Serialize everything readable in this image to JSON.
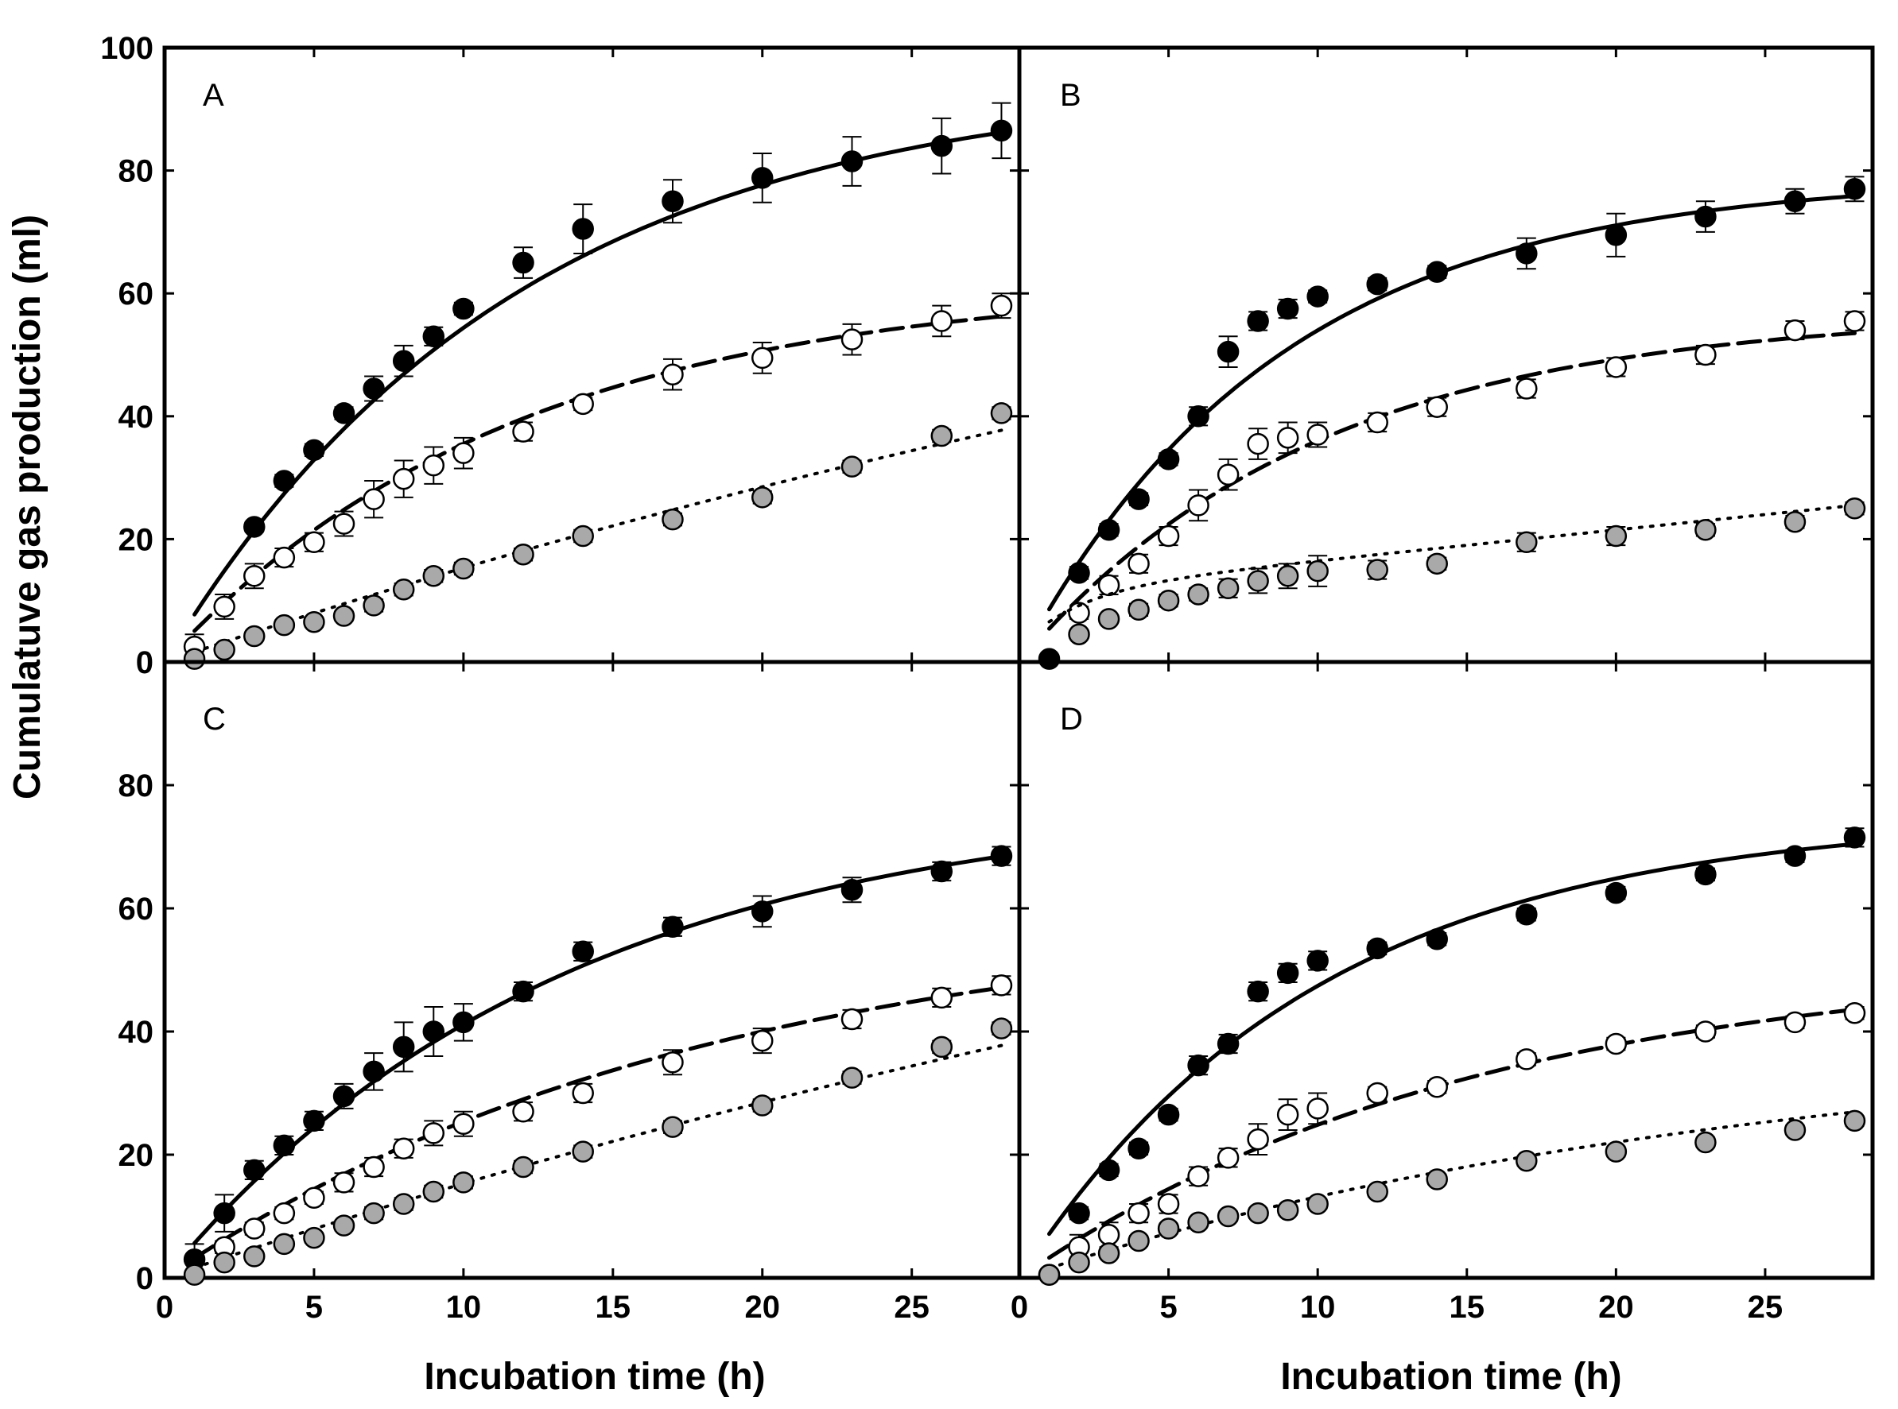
{
  "chart_data": {
    "type": "scatter",
    "ylabel": "Cumulatuve gas production (ml)",
    "xlabel": "Incubation time (h)",
    "xlim": [
      0,
      28.6
    ],
    "ylim": [
      0,
      100
    ],
    "x_ticks": [
      0,
      5,
      10,
      15,
      20,
      25
    ],
    "y_ticks": [
      0,
      20,
      40,
      60,
      80,
      100
    ],
    "series_styles": [
      {
        "key": "filled",
        "marker_fill": "#000000",
        "line": "solid"
      },
      {
        "key": "open",
        "marker_fill": "#ffffff",
        "line": "dashed"
      },
      {
        "key": "grey",
        "marker_fill": "#a9a9a9",
        "line": "dotted"
      }
    ],
    "panels": [
      {
        "label": "A",
        "series": [
          {
            "style": "filled",
            "fit": {
              "a": 0,
              "b": 95,
              "c": 0.085
            },
            "x": [
              3,
              4,
              5,
              6,
              7,
              8,
              9,
              10,
              12,
              14,
              17,
              20,
              23,
              26,
              28
            ],
            "y": [
              22,
              29.5,
              34.5,
              40.5,
              44.5,
              49,
              53,
              57.5,
              65,
              70.5,
              75,
              78.8,
              81.5,
              84,
              86.5
            ],
            "err": [
              0.8,
              1,
              1,
              1,
              2,
              2.5,
              1.5,
              1,
              2.5,
              4,
              3.5,
              4,
              4,
              4.5,
              4.5
            ]
          },
          {
            "style": "open",
            "fit": {
              "a": 0,
              "b": 62,
              "c": 0.085
            },
            "x": [
              1,
              2,
              3,
              4,
              5,
              6,
              7,
              8,
              9,
              10,
              12,
              14,
              17,
              20,
              23,
              26,
              28
            ],
            "y": [
              2.5,
              9,
              14,
              17,
              19.5,
              22.5,
              26.5,
              29.8,
              32,
              34,
              37.5,
              42,
              46.8,
              49.5,
              52.5,
              55.5,
              58
            ],
            "err": [
              2,
              2,
              2,
              1.5,
              1.5,
              2,
              3,
              3,
              3,
              2.5,
              1.5,
              1,
              2.5,
              2.5,
              2.5,
              2.5,
              2
            ]
          },
          {
            "style": "grey",
            "fit": {
              "a": 0,
              "b": 110,
              "c": 0.015
            },
            "x": [
              1,
              2,
              3,
              4,
              5,
              6,
              7,
              8,
              9,
              10,
              12,
              14,
              17,
              20,
              23,
              26,
              28
            ],
            "y": [
              0.5,
              2,
              4.2,
              6,
              6.5,
              7.5,
              9.2,
              11.8,
              14,
              15.2,
              17.5,
              20.5,
              23.2,
              26.8,
              31.8,
              36.8,
              40.5
            ],
            "err": [
              0.5,
              0.5,
              0.7,
              0.8,
              0.8,
              0.8,
              1,
              1,
              1,
              1,
              1,
              1,
              1,
              1,
              1,
              1,
              1
            ]
          }
        ]
      },
      {
        "label": "B",
        "series": [
          {
            "style": "filled",
            "fit": {
              "a": 0,
              "b": 79,
              "c": 0.115
            },
            "x": [
              1,
              2,
              3,
              4,
              5,
              6,
              7,
              8,
              9,
              10,
              12,
              14,
              17,
              20,
              23,
              26,
              28
            ],
            "y": [
              0.5,
              14.5,
              21.5,
              26.5,
              33,
              40,
              50.5,
              55.5,
              57.5,
              59.5,
              61.5,
              63.5,
              66.5,
              69.5,
              72.5,
              75,
              77
            ],
            "err": [
              0.5,
              1,
              1,
              1,
              1,
              1.5,
              2.5,
              1.5,
              1.5,
              1,
              1,
              1,
              2.5,
              3.5,
              2.5,
              2,
              2
            ]
          },
          {
            "style": "open",
            "fit": {
              "a": 0,
              "b": 57,
              "c": 0.1
            },
            "x": [
              2,
              3,
              4,
              5,
              6,
              7,
              8,
              9,
              10,
              12,
              14,
              17,
              20,
              23,
              26,
              28
            ],
            "y": [
              8,
              12.5,
              16,
              20.5,
              25.5,
              30.5,
              35.5,
              36.5,
              37,
              39,
              41.5,
              44.5,
              48,
              50,
              54,
              55.5
            ],
            "err": [
              1,
              1.5,
              1.5,
              1.5,
              2.5,
              2.5,
              2.5,
              2.5,
              2,
              1.5,
              1.5,
              1.5,
              1.5,
              1.5,
              1.5,
              1.5
            ]
          },
          {
            "style": "grey",
            "fit": {
              "a": 2.5,
              "b": 9,
              "c": 0.5,
              "d": 0.5
            },
            "x": [
              2,
              3,
              4,
              5,
              6,
              7,
              8,
              9,
              10,
              12,
              14,
              17,
              20,
              23,
              26,
              28
            ],
            "y": [
              4.5,
              7,
              8.5,
              10,
              11,
              12,
              13.2,
              14,
              14.8,
              15,
              16,
              19.5,
              20.5,
              21.5,
              22.8,
              25
            ],
            "err": [
              0.5,
              0.5,
              1,
              1,
              1,
              1.5,
              2,
              2,
              2.5,
              1.5,
              1,
              1.5,
              1.5,
              1,
              1,
              1
            ]
          }
        ]
      },
      {
        "label": "C",
        "series": [
          {
            "style": "filled",
            "fit": {
              "a": 0,
              "b": 78,
              "c": 0.075
            },
            "x": [
              1,
              2,
              3,
              4,
              5,
              6,
              7,
              8,
              9,
              10,
              12,
              14,
              17,
              20,
              23,
              26,
              28
            ],
            "y": [
              3,
              10.5,
              17.5,
              21.5,
              25.5,
              29.5,
              33.5,
              37.5,
              40,
              41.5,
              46.5,
              53,
              57,
              59.5,
              63,
              66,
              68.5
            ],
            "err": [
              2.5,
              3,
              1.5,
              1.5,
              1.5,
              2,
              3,
              4,
              4,
              3,
              1.5,
              1.5,
              1.5,
              2.5,
              2,
              1.5,
              1.5
            ]
          },
          {
            "style": "open",
            "fit": {
              "a": 0,
              "b": 60,
              "c": 0.055
            },
            "x": [
              2,
              3,
              4,
              5,
              6,
              7,
              8,
              9,
              10,
              12,
              14,
              17,
              20,
              23,
              26,
              28
            ],
            "y": [
              5,
              8,
              10.5,
              13,
              15.5,
              18,
              21,
              23.5,
              25,
              27,
              30,
              35,
              38.5,
              42,
              45.5,
              47.5
            ],
            "err": [
              1,
              1,
              1,
              1,
              1.5,
              1.5,
              1.5,
              2,
              2,
              1.5,
              1.5,
              2,
              2,
              1.5,
              1.5,
              1.5
            ]
          },
          {
            "style": "grey",
            "fit": {
              "a": 0,
              "b": 110,
              "c": 0.015
            },
            "x": [
              1,
              2,
              3,
              4,
              5,
              6,
              7,
              8,
              9,
              10,
              12,
              14,
              17,
              20,
              23,
              26,
              28
            ],
            "y": [
              0.5,
              2.5,
              3.5,
              5.5,
              6.5,
              8.5,
              10.5,
              12,
              14,
              15.5,
              18,
              20.5,
              24.5,
              28,
              32.5,
              37.5,
              40.5
            ],
            "err": [
              0.5,
              0.5,
              0.8,
              0.8,
              0.8,
              0.8,
              1,
              1,
              1,
              1,
              1,
              1,
              1,
              1,
              1,
              1,
              1
            ]
          }
        ]
      },
      {
        "label": "D",
        "series": [
          {
            "style": "filled",
            "fit": {
              "a": 0,
              "b": 75,
              "c": 0.1
            },
            "x": [
              1,
              2,
              3,
              4,
              5,
              6,
              7,
              8,
              9,
              10,
              12,
              14,
              17,
              20,
              23,
              26,
              28
            ],
            "y": [
              0.5,
              10.5,
              17.5,
              21,
              26.5,
              34.5,
              38,
              46.5,
              49.5,
              51.5,
              53.5,
              55,
              59,
              62.5,
              65.5,
              68.5,
              71.5
            ],
            "err": [
              0.5,
              1,
              1,
              1,
              1,
              1.5,
              1.5,
              1.5,
              1.5,
              1.5,
              1,
              1,
              1,
              1,
              1,
              1,
              1.5
            ]
          },
          {
            "style": "open",
            "fit": {
              "a": 0,
              "b": 52,
              "c": 0.065
            },
            "x": [
              2,
              3,
              4,
              5,
              6,
              7,
              8,
              9,
              10,
              12,
              14,
              17,
              20,
              23,
              26,
              28
            ],
            "y": [
              5,
              7,
              10.5,
              12,
              16.5,
              19.5,
              22.5,
              26.5,
              27.5,
              30,
              31,
              35.5,
              38,
              40,
              41.5,
              43
            ],
            "err": [
              2,
              2,
              1.5,
              1.5,
              1.5,
              1.5,
              2.5,
              2.5,
              2.5,
              1,
              1,
              1,
              1,
              1,
              1,
              1
            ]
          },
          {
            "style": "grey",
            "fit": {
              "a": 0,
              "b": 40,
              "c": 0.04
            },
            "x": [
              1,
              2,
              3,
              4,
              5,
              6,
              7,
              8,
              9,
              10,
              12,
              14,
              17,
              20,
              23,
              26,
              28
            ],
            "y": [
              0.5,
              2.5,
              4,
              6,
              8,
              9,
              10,
              10.5,
              11,
              12,
              14,
              16,
              19,
              20.5,
              22,
              24,
              25.5
            ],
            "err": [
              0.5,
              0.5,
              0.7,
              0.8,
              0.8,
              0.8,
              0.8,
              0.8,
              0.8,
              0.8,
              0.8,
              0.8,
              0.8,
              0.8,
              0.8,
              0.8,
              0.8
            ]
          }
        ]
      }
    ]
  }
}
